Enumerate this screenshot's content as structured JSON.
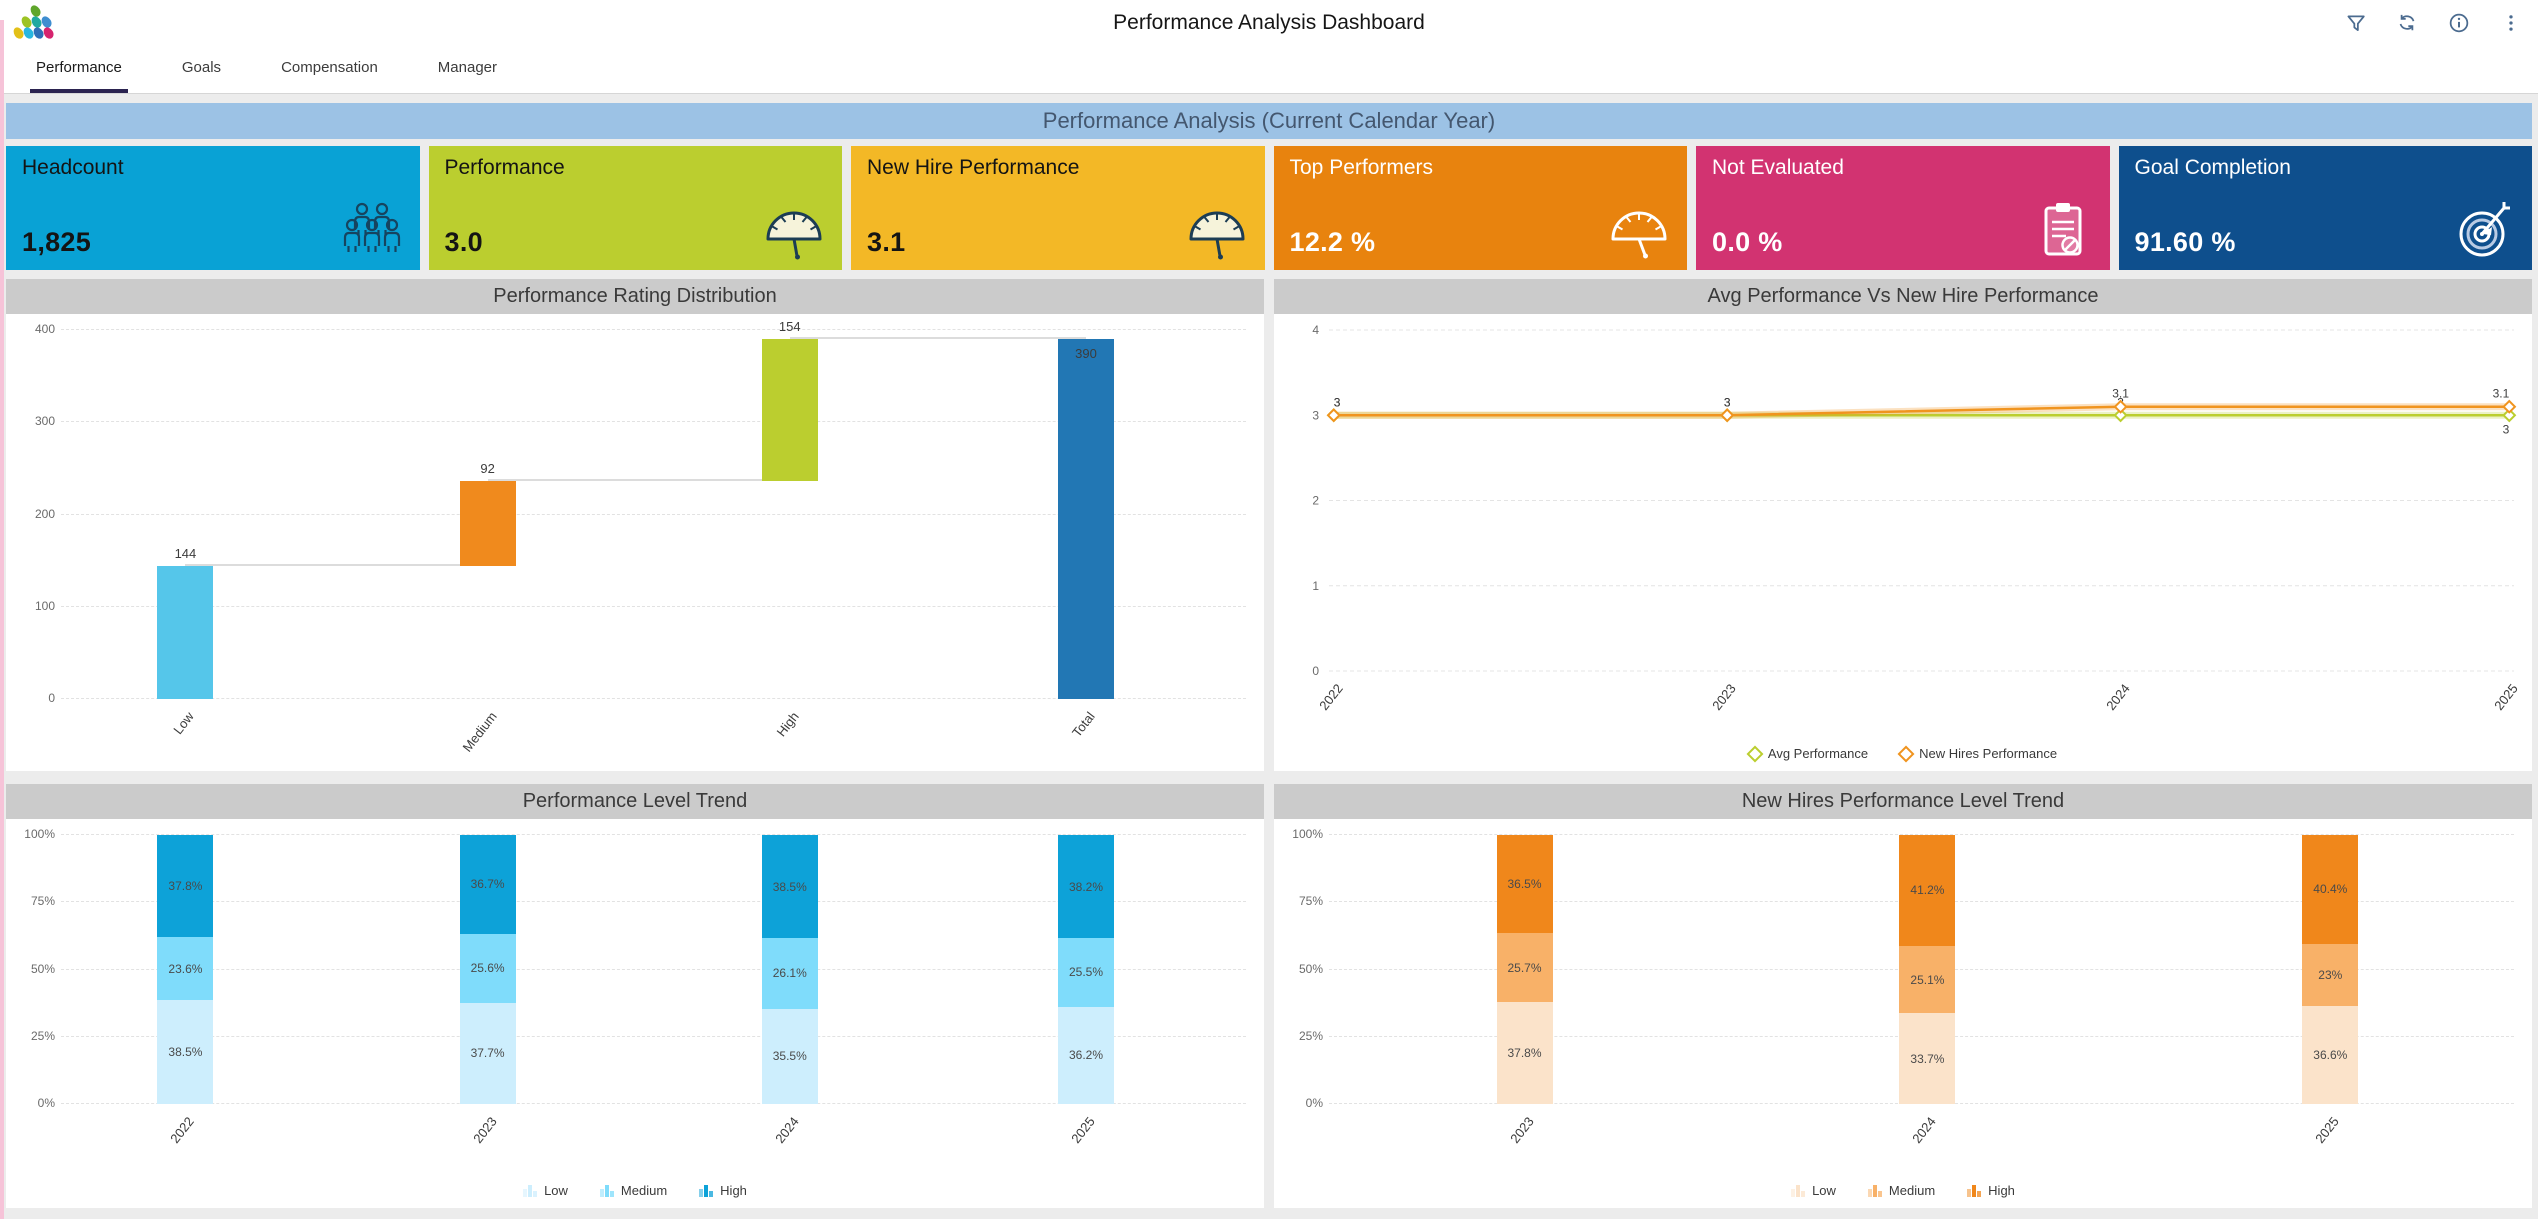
{
  "header": {
    "title": "Performance Analysis Dashboard",
    "toolbar_icons": [
      "filter-icon",
      "refresh-icon",
      "info-icon",
      "more-icon"
    ]
  },
  "tabs": [
    {
      "label": "Performance",
      "active": true
    },
    {
      "label": "Goals",
      "active": false
    },
    {
      "label": "Compensation",
      "active": false
    },
    {
      "label": "Manager",
      "active": false
    }
  ],
  "banner": {
    "title": "Performance Analysis (Current Calendar Year)"
  },
  "kpi_cards": [
    {
      "label": "Headcount",
      "value": "1,825",
      "bg": "#09A2D5",
      "text": "#141414",
      "icon": "people-icon",
      "icon_color": "#16445F"
    },
    {
      "label": "Performance",
      "value": "3.0",
      "bg": "#BBCE2F",
      "text": "#141414",
      "icon": "gauge-icon",
      "icon_color": "#1C3D54"
    },
    {
      "label": "New Hire Performance",
      "value": "3.1",
      "bg": "#F3B826",
      "text": "#141414",
      "icon": "gauge-icon",
      "icon_color": "#1C3D54"
    },
    {
      "label": "Top Performers",
      "value": "12.2 %",
      "bg": "#E8830E",
      "text": "#FFFFFF",
      "icon": "gauge-icon",
      "icon_color": "#FFFFFF"
    },
    {
      "label": "Not Evaluated",
      "value": "0.0 %",
      "bg": "#D23371",
      "text": "#FFFFFF",
      "icon": "clipboard-icon",
      "icon_color": "#FFFFFF"
    },
    {
      "label": "Goal Completion",
      "value": "91.60 %",
      "bg": "#0E4F8D",
      "text": "#FFFFFF",
      "icon": "target-icon",
      "icon_color": "#FFFFFF"
    }
  ],
  "chart_data": [
    {
      "type": "bar",
      "subtype": "waterfall",
      "title": "Performance Rating Distribution",
      "categories": [
        "Low",
        "Medium",
        "High",
        "Total"
      ],
      "values": [
        144,
        92,
        154,
        390
      ],
      "starts": [
        0,
        144,
        236,
        0
      ],
      "labels": [
        "144",
        "92",
        "154",
        "390"
      ],
      "colors": [
        "#55C6EA",
        "#F08A1D",
        "#BBCE2F",
        "#2277B4"
      ],
      "ylim": [
        0,
        400
      ],
      "yticks": [
        0,
        100,
        200,
        300,
        400
      ],
      "grid": "dashed-horizontal",
      "legend": "none"
    },
    {
      "type": "line",
      "title": "Avg Performance Vs New Hire Performance",
      "x": [
        "2022",
        "2023",
        "2024",
        "2025"
      ],
      "ylim": [
        0,
        4
      ],
      "yticks": [
        0,
        1,
        2,
        3,
        4
      ],
      "grid": "dashed-horizontal",
      "legend_position": "bottom",
      "series": [
        {
          "name": "Avg Performance",
          "color": "#BBCE2F",
          "values": [
            3,
            3,
            3,
            3
          ],
          "labels": [
            "3",
            "3",
            "3",
            "3"
          ]
        },
        {
          "name": "New Hires Performance",
          "color": "#F0941F",
          "values": [
            3,
            3,
            3.1,
            3.1
          ],
          "labels": [
            "3",
            "3",
            "3.1",
            "3.1"
          ]
        }
      ]
    },
    {
      "type": "bar",
      "subtype": "stacked-100",
      "title": "Performance Level Trend",
      "categories": [
        "2022",
        "2023",
        "2024",
        "2025"
      ],
      "yticks": [
        "0%",
        "25%",
        "50%",
        "75%",
        "100%"
      ],
      "grid": "dashed-horizontal",
      "legend_position": "bottom",
      "series": [
        {
          "name": "Low",
          "color": "#CDEEFD",
          "values": [
            38.5,
            37.7,
            35.5,
            36.2
          ],
          "labels": [
            "38.5%",
            "37.7%",
            "35.5%",
            "36.2%"
          ]
        },
        {
          "name": "Medium",
          "color": "#7FDCFB",
          "values": [
            23.6,
            25.6,
            26.1,
            25.5
          ],
          "labels": [
            "23.6%",
            "25.6%",
            "26.1%",
            "25.5%"
          ]
        },
        {
          "name": "High",
          "color": "#0DA2D8",
          "values": [
            37.8,
            36.7,
            38.5,
            38.2
          ],
          "labels": [
            "37.8%",
            "36.7%",
            "38.5%",
            "38.2%"
          ]
        }
      ]
    },
    {
      "type": "bar",
      "subtype": "stacked-100",
      "title": "New Hires Performance Level Trend",
      "categories": [
        "2023",
        "2024",
        "2025"
      ],
      "yticks": [
        "0%",
        "25%",
        "50%",
        "75%",
        "100%"
      ],
      "grid": "dashed-horizontal",
      "legend_position": "bottom",
      "series": [
        {
          "name": "Low",
          "color": "#FBE3CA",
          "values": [
            37.8,
            33.7,
            36.6
          ],
          "labels": [
            "37.8%",
            "33.7%",
            "36.6%"
          ]
        },
        {
          "name": "Medium",
          "color": "#F8B168",
          "values": [
            25.7,
            25.1,
            23
          ],
          "labels": [
            "25.7%",
            "25.1%",
            "23%"
          ]
        },
        {
          "name": "High",
          "color": "#F0871B",
          "values": [
            36.5,
            41.2,
            40.4
          ],
          "labels": [
            "36.5%",
            "41.2%",
            "40.4%"
          ]
        }
      ]
    }
  ]
}
